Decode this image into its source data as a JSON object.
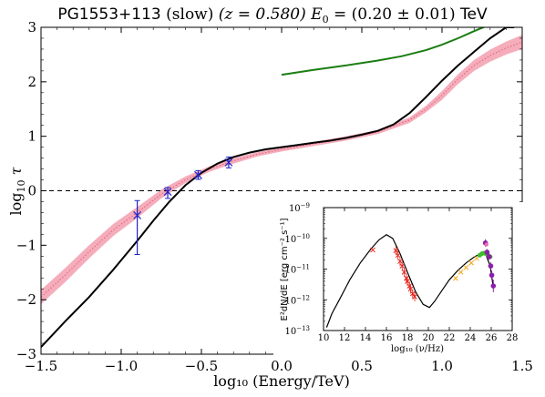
{
  "title": {
    "source": "PG1553+113",
    "state": "(slow)",
    "redshift": "(z = 0.580)",
    "energy_sym": "E",
    "energy_sub": "0",
    "energy_val": "= (0.20 ± 0.01)",
    "unit": "TeV"
  },
  "axes": {
    "xlabel": "log₁₀ (Energy/TeV)",
    "ylabel_main": "log",
    "ylabel_sub": "10",
    "ylabel_tau": "τ"
  },
  "colors": {
    "model": "#000000",
    "band_fill": "#f4a4b4",
    "band_line": "#e0607a",
    "green_curve": "#1b7d12",
    "data_points": "#1f25c8",
    "inset_red": "#e8231a",
    "inset_orange": "#f2a516",
    "inset_green": "#3bbd2a",
    "inset_purple": "#8a1fa8",
    "inset_pink": "#f06ab4"
  },
  "chart_data": [
    {
      "type": "line",
      "xlim": [
        -1.5,
        1.5
      ],
      "ylim": [
        -3,
        3
      ],
      "xticks": [
        "−1.5",
        "−1.0",
        "−0.5",
        "0.0",
        "0.5",
        "1.0",
        "1.5"
      ],
      "xtick_values": [
        -1.5,
        -1.0,
        -0.5,
        0.0,
        0.5,
        1.0,
        1.5
      ],
      "yticks": [
        "−3",
        "−2",
        "−1",
        "0",
        "1",
        "2",
        "3"
      ],
      "ytick_values": [
        -3,
        -2,
        -1,
        0,
        1,
        2,
        3
      ],
      "reference_line_y": 0,
      "model_curve": {
        "x": [
          -1.5,
          -1.35,
          -1.2,
          -1.05,
          -0.9,
          -0.8,
          -0.7,
          -0.6,
          -0.5,
          -0.4,
          -0.3,
          -0.2,
          -0.1,
          0.0,
          0.1,
          0.2,
          0.3,
          0.4,
          0.5,
          0.6,
          0.7,
          0.8,
          0.9,
          1.0,
          1.1,
          1.2,
          1.3,
          1.4,
          1.45
        ],
        "y": [
          -2.87,
          -2.4,
          -1.95,
          -1.45,
          -0.92,
          -0.55,
          -0.2,
          0.1,
          0.33,
          0.5,
          0.62,
          0.7,
          0.76,
          0.8,
          0.84,
          0.88,
          0.92,
          0.97,
          1.03,
          1.1,
          1.22,
          1.43,
          1.72,
          2.02,
          2.3,
          2.55,
          2.8,
          3.0,
          3.0
        ]
      },
      "band": {
        "x": [
          -1.5,
          -1.35,
          -1.2,
          -1.05,
          -0.9,
          -0.75,
          -0.6,
          -0.45,
          -0.3,
          -0.15,
          0.0,
          0.2,
          0.4,
          0.6,
          0.8,
          0.9,
          1.0,
          1.1,
          1.2,
          1.3,
          1.4,
          1.5
        ],
        "mid": [
          -1.95,
          -1.55,
          -1.12,
          -0.72,
          -0.4,
          -0.06,
          0.2,
          0.4,
          0.55,
          0.67,
          0.76,
          0.86,
          0.96,
          1.08,
          1.3,
          1.5,
          1.75,
          2.05,
          2.3,
          2.48,
          2.62,
          2.73
        ],
        "halfwidth": [
          0.13,
          0.13,
          0.12,
          0.11,
          0.1,
          0.08,
          0.06,
          0.05,
          0.05,
          0.04,
          0.04,
          0.04,
          0.04,
          0.04,
          0.05,
          0.06,
          0.08,
          0.09,
          0.1,
          0.11,
          0.12,
          0.13
        ]
      },
      "green_curve": {
        "x": [
          0.0,
          0.2,
          0.4,
          0.6,
          0.75,
          0.9,
          1.0,
          1.1,
          1.2,
          1.3
        ],
        "y": [
          2.13,
          2.22,
          2.3,
          2.39,
          2.47,
          2.58,
          2.68,
          2.8,
          2.93,
          3.05
        ]
      },
      "data_points": {
        "x": [
          -0.9,
          -0.71,
          -0.52,
          -0.33
        ],
        "y": [
          -0.45,
          -0.02,
          0.29,
          0.52
        ],
        "yerr_low": [
          0.72,
          0.12,
          0.08,
          0.1
        ],
        "yerr_high": [
          0.27,
          0.08,
          0.08,
          0.1
        ]
      }
    },
    {
      "type": "scatter",
      "ylabel": "E²dN/dE [erg cm⁻² s⁻¹]",
      "xlabel": "log₁₀ (ν/Hz)",
      "xlim": [
        10,
        28
      ],
      "ylim_log10": [
        -13,
        -9
      ],
      "xticks": [
        "10",
        "12",
        "14",
        "16",
        "18",
        "20",
        "22",
        "24",
        "26",
        "28"
      ],
      "xtick_values": [
        10,
        12,
        14,
        16,
        18,
        20,
        22,
        24,
        26,
        28
      ],
      "ytick_base": "10",
      "ytick_exponents": [
        "−13",
        "−12",
        "−11",
        "−10",
        "−9"
      ],
      "ytick_values": [
        -13,
        -12,
        -11,
        -10,
        -9
      ],
      "sed_model": {
        "x": [
          10.3,
          10.8,
          11.5,
          12.5,
          13.5,
          14.5,
          15.3,
          16.0,
          16.6,
          17.3,
          18.0,
          18.8,
          19.5,
          20.1,
          20.6,
          21.3,
          22.0,
          22.8,
          23.6,
          24.4,
          25.0,
          25.5,
          25.9,
          26.2
        ],
        "y": [
          -12.9,
          -12.45,
          -12.0,
          -11.35,
          -10.8,
          -10.35,
          -10.05,
          -9.88,
          -10.0,
          -10.5,
          -11.1,
          -11.75,
          -12.15,
          -12.25,
          -12.05,
          -11.7,
          -11.35,
          -11.05,
          -10.8,
          -10.6,
          -10.5,
          -10.55,
          -10.9,
          -11.6
        ]
      },
      "optical_points": {
        "x": [
          14.7
        ],
        "y": [
          -10.38
        ]
      },
      "xray_points": {
        "x": [
          16.9,
          17.1,
          17.3,
          17.5,
          17.7,
          17.9,
          18.0,
          18.2,
          18.3,
          18.5,
          18.7
        ],
        "y": [
          -10.4,
          -10.55,
          -10.75,
          -10.9,
          -11.1,
          -11.3,
          -11.4,
          -11.55,
          -11.65,
          -11.8,
          -11.9
        ]
      },
      "gamma_orange": {
        "x": [
          22.6,
          23.1,
          23.6,
          24.1,
          24.6
        ],
        "y": [
          -11.3,
          -11.1,
          -10.95,
          -10.8,
          -10.65
        ]
      },
      "gamma_green": {
        "x": [
          24.9,
          25.1,
          25.3,
          25.5,
          25.7,
          25.9
        ],
        "y": [
          -10.55,
          -10.5,
          -10.48,
          -10.5,
          -10.55,
          -10.6
        ]
      },
      "tev_purple": {
        "x": [
          25.45,
          25.6,
          25.8,
          25.95,
          26.05,
          26.2
        ],
        "y": [
          -10.15,
          -10.45,
          -10.6,
          -10.9,
          -11.2,
          -11.55
        ],
        "err": [
          0.12,
          0.1,
          0.1,
          0.12,
          0.15,
          0.2
        ]
      },
      "tev_pink": {
        "x": [
          25.55
        ],
        "y": [
          -10.2
        ]
      }
    }
  ]
}
